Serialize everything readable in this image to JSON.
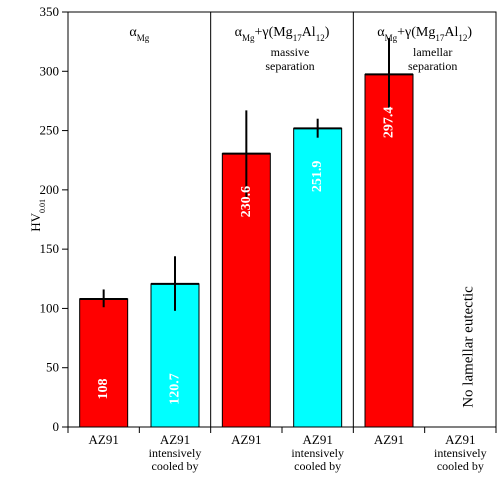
{
  "chart_data": {
    "type": "bar",
    "title": "",
    "xlabel": "",
    "ylabel": "HV0.01",
    "ylabel_main": "HV",
    "ylabel_sub": "0.01",
    "ylim": [
      0,
      350
    ],
    "yticks": [
      0,
      50,
      100,
      150,
      200,
      250,
      300,
      350
    ],
    "categories": [
      "AZ91",
      "AZ91 intensively cooled by",
      "AZ91",
      "AZ91 intensively cooled by",
      "AZ91",
      "AZ91 intensively cooled by"
    ],
    "category_lines": [
      [
        "AZ91"
      ],
      [
        "AZ91",
        "intensively",
        "cooled by"
      ],
      [
        "AZ91"
      ],
      [
        "AZ91",
        "intensively",
        "cooled by"
      ],
      [
        "AZ91"
      ],
      [
        "AZ91",
        "intensively",
        "cooled by"
      ]
    ],
    "values": [
      108,
      120.7,
      230.6,
      251.9,
      297.4,
      null
    ],
    "value_labels": [
      "108",
      "120.7",
      "230.6",
      "251.9",
      "297.4",
      ""
    ],
    "error_bars": [
      [
        101,
        116
      ],
      [
        98,
        144
      ],
      [
        194,
        267
      ],
      [
        244,
        260
      ],
      [
        268,
        328
      ],
      null
    ],
    "bar_colors": [
      "#ff0000",
      "#00ffff",
      "#ff0000",
      "#00ffff",
      "#ff0000",
      null
    ],
    "groups": [
      {
        "phase_lines": [
          "αMg"
        ],
        "note_lines": []
      },
      {
        "phase_lines": [
          "αMg+γ(Mg17Al12)"
        ],
        "note_lines": [
          "massive",
          "separation"
        ]
      },
      {
        "phase_lines": [
          "αMg+γ(Mg17Al12)"
        ],
        "note_lines": [
          "lamellar",
          "separation"
        ]
      }
    ],
    "missing_bar_note": "No lamellar eutectic",
    "grid": false,
    "legend": "none"
  }
}
